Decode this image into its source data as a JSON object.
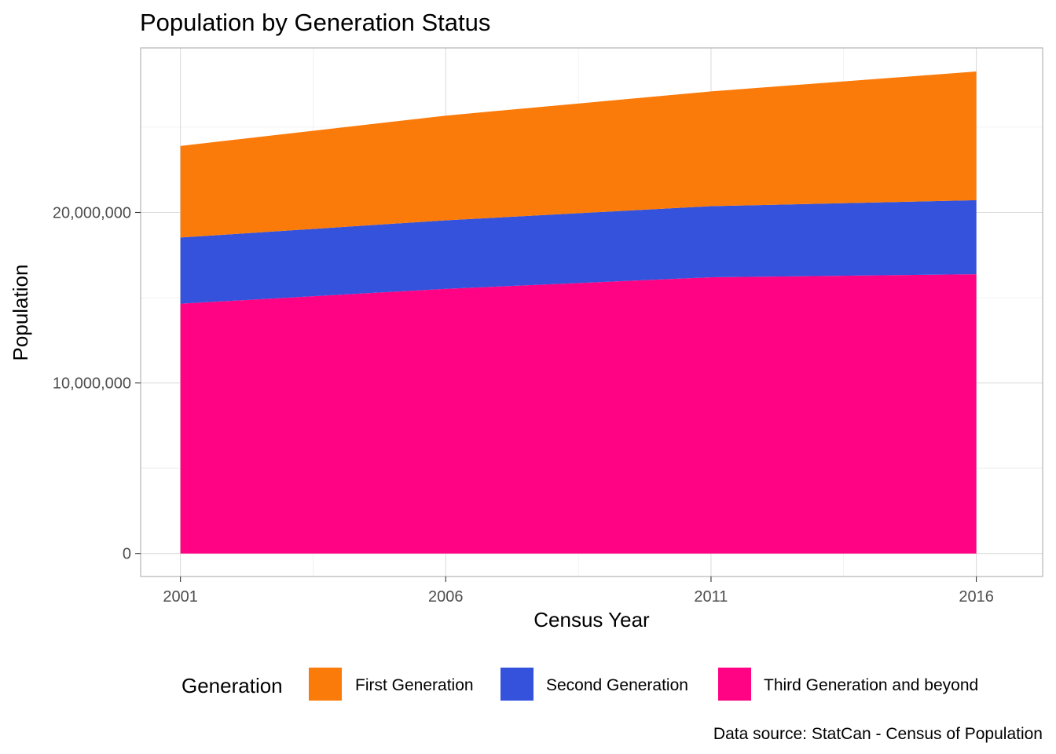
{
  "chart_data": {
    "type": "area",
    "stacked": true,
    "title": "Population by Generation Status",
    "xlabel": "Census Year",
    "ylabel": "Population",
    "x": [
      2001,
      2006,
      2011,
      2016
    ],
    "x_ticks": [
      "2001",
      "2006",
      "2011",
      "2016"
    ],
    "y_ticks": [
      {
        "value": 0,
        "label": "0"
      },
      {
        "value": 10000000,
        "label": "10,000,000"
      },
      {
        "value": 20000000,
        "label": "20,000,000"
      }
    ],
    "xlim": [
      2000.25,
      2017.25
    ],
    "ylim": [
      -1350000,
      29650000
    ],
    "grid": true,
    "legend_title": "Generation",
    "legend_position": "bottom",
    "series": [
      {
        "name": "Third Generation and beyond",
        "color": "#FF0384",
        "values": [
          14650000,
          15520000,
          16200000,
          16380000
        ]
      },
      {
        "name": "Second Generation",
        "color": "#3452DB",
        "values": [
          3880000,
          4020000,
          4170000,
          4340000
        ]
      },
      {
        "name": "First Generation",
        "color": "#FB7B0A",
        "values": [
          5370000,
          6140000,
          6730000,
          7550000
        ]
      }
    ],
    "legend_order": [
      "First Generation",
      "Second Generation",
      "Third Generation and beyond"
    ],
    "caption": "Data source: StatCan - Census of Population"
  }
}
